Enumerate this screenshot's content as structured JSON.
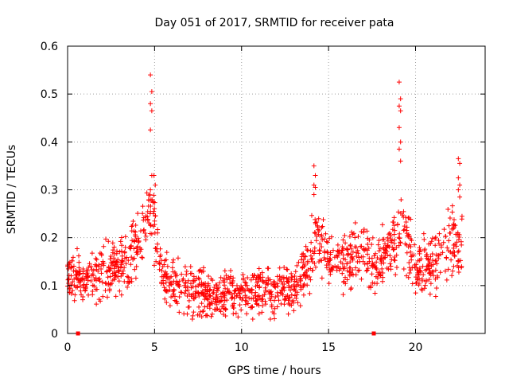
{
  "chart_data": {
    "type": "scatter",
    "title": "Day 051 of 2017, SRMTID for receiver pata",
    "xlabel": "GPS time / hours",
    "ylabel": "SRMTID / TECUs",
    "xlim": [
      0,
      24
    ],
    "ylim": [
      0,
      0.6
    ],
    "xticks": [
      0,
      5,
      10,
      15,
      20
    ],
    "yticks": [
      0,
      0.1,
      0.2,
      0.3,
      0.4,
      0.5,
      0.6
    ],
    "x_tick_labels": [
      "0",
      "5",
      "10",
      "15",
      "20"
    ],
    "y_tick_labels": [
      "0",
      "0.1",
      "0.2",
      "0.3",
      "0.4",
      "0.5",
      "0.6"
    ],
    "grid": true,
    "marker": "+",
    "series_color": "#ff0000",
    "baseline_markers_x": [
      0.6,
      17.6
    ],
    "trend": {
      "x": [
        0,
        1,
        2,
        3,
        3.5,
        4,
        4.5,
        4.8,
        5,
        5.5,
        6,
        7,
        8,
        9,
        10,
        11,
        12,
        13,
        13.5,
        14,
        14.3,
        15,
        16,
        17,
        17.5,
        18,
        19,
        19.3,
        20,
        21,
        22,
        22.7
      ],
      "y": [
        0.12,
        0.11,
        0.13,
        0.15,
        0.14,
        0.19,
        0.22,
        0.27,
        0.22,
        0.12,
        0.1,
        0.09,
        0.075,
        0.08,
        0.085,
        0.09,
        0.09,
        0.1,
        0.12,
        0.17,
        0.2,
        0.15,
        0.15,
        0.17,
        0.14,
        0.16,
        0.2,
        0.23,
        0.13,
        0.15,
        0.19,
        0.18
      ]
    },
    "spikes": [
      {
        "x": 4.8,
        "y": [
          0.54,
          0.505,
          0.48,
          0.465,
          0.425,
          0.33,
          0.3
        ]
      },
      {
        "x": 5.0,
        "y": [
          0.33,
          0.31
        ]
      },
      {
        "x": 14.2,
        "y": [
          0.35,
          0.33,
          0.31,
          0.305,
          0.29
        ]
      },
      {
        "x": 19.1,
        "y": [
          0.525,
          0.49,
          0.475,
          0.465,
          0.43,
          0.4,
          0.385,
          0.36
        ]
      },
      {
        "x": 22.5,
        "y": [
          0.365,
          0.355,
          0.325,
          0.31,
          0.3,
          0.285
        ]
      }
    ],
    "point_count": 1400,
    "noise_amplitude": 0.055
  }
}
